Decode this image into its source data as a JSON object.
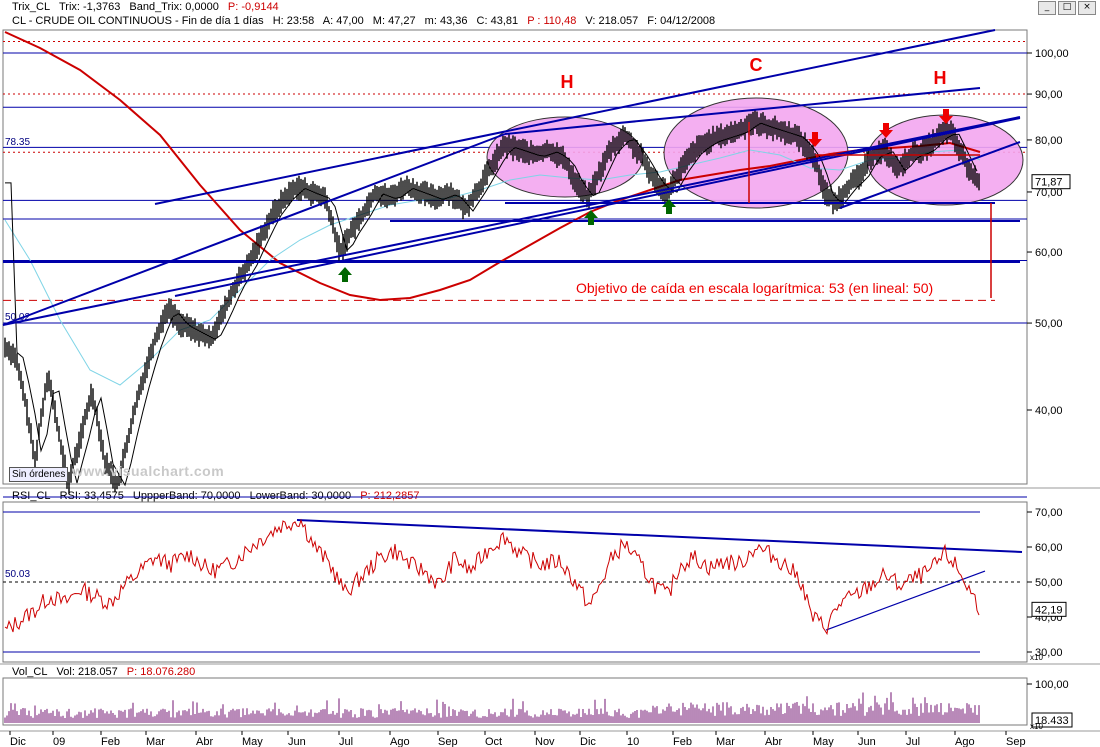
{
  "panels": {
    "trix_header": {
      "series": "Trix_CL",
      "trix": "Trix: -1,3763",
      "band": "Band_Trix: 0,0000",
      "p": "P: -0,9144"
    },
    "price_header": {
      "title": "CL - CRUDE OIL CONTINUOUS - Fin de día 1 días",
      "h": "H: 23:58",
      "a": "A: 47,00",
      "m": "M: 47,27",
      "mm": "m: 43,36",
      "c": "C: 43,81",
      "p": "P : 110,48",
      "v": "V: 218.057",
      "f": "F: 04/12/2008"
    },
    "rsi_header": {
      "series": "RSI_CL",
      "rsi": "RSI: 33,4575",
      "upper": "UppperBand: 70,0000",
      "lower": "LowerBand: 30,0000",
      "p": "P: 212,2857"
    },
    "vol_header": {
      "series": "Vol_CL",
      "vol": "Vol: 218.057",
      "p": "P: 18.076.280"
    }
  },
  "window_buttons": [
    "_",
    "□",
    "×"
  ],
  "sin_ordenes": "Sin órdenes",
  "watermark": "www.visualchart.com",
  "chart_data": [
    {
      "type": "line",
      "name": "price",
      "ylim": [
        30,
        106
      ],
      "scale": "log",
      "y_ticks": [
        "100,00",
        "90,00",
        "80,00",
        "70,00",
        "60,00",
        "50,00",
        "40,00"
      ],
      "y_tick_values": [
        100,
        90,
        80,
        70,
        60,
        50,
        40
      ],
      "last_value_label": "71,87",
      "last_value": 71.87,
      "left_labels": [
        {
          "text": "78.35",
          "value": 78.35
        },
        {
          "text": "50.02",
          "value": 50.02
        }
      ],
      "horizontal_levels": [
        100,
        87,
        78.5,
        68.5,
        65.3,
        58.7,
        50.0,
        32
      ],
      "dotted_levels": [
        103,
        90,
        77.5
      ],
      "dashed_target_level": 53,
      "pattern_labels": [
        "H",
        "C",
        "H"
      ],
      "annotation": "Objetivo de caída en escala logarítmica: 53 (en lineal: 50)",
      "colors": {
        "price": "#000000",
        "ma_long": "#cc0000",
        "ma_short": "#000000",
        "ma_cyan": "#7fd4e6",
        "channel": "#0000aa",
        "ellipse_fill": "#f3a6f0",
        "arrow_up": "#006600",
        "arrow_down": "#ee0000"
      }
    },
    {
      "type": "line",
      "name": "rsi",
      "ylim": [
        26,
        72
      ],
      "y_ticks": [
        "70,00",
        "60,00",
        "50,00",
        "40,00",
        "30,00"
      ],
      "y_tick_values": [
        70,
        60,
        50,
        40,
        30
      ],
      "left_label": "50.03",
      "last_value_label": "42,19",
      "last_value": 42.19,
      "scale_factor": "x10",
      "colors": {
        "rsi": "#cc0000",
        "trend": "#0000aa"
      }
    },
    {
      "type": "bar",
      "name": "volume",
      "y_ticks": [
        "100,00"
      ],
      "last_value_label": "18.433",
      "scale_factor": "x10",
      "colors": {
        "bars": "#8a3b8a"
      }
    }
  ],
  "x_axis": {
    "labels": [
      "Dic",
      "09",
      "Feb",
      "Mar",
      "Abr",
      "May",
      "Jun",
      "Jul",
      "Ago",
      "Sep",
      "Oct",
      "Nov",
      "Dic",
      "10",
      "Feb",
      "Mar",
      "Abr",
      "May",
      "Jun",
      "Jul",
      "Ago",
      "Sep"
    ],
    "positions": [
      10,
      53,
      101,
      146,
      196,
      242,
      288,
      339,
      390,
      438,
      485,
      535,
      580,
      627,
      673,
      716,
      765,
      813,
      858,
      906,
      955,
      1006
    ]
  }
}
